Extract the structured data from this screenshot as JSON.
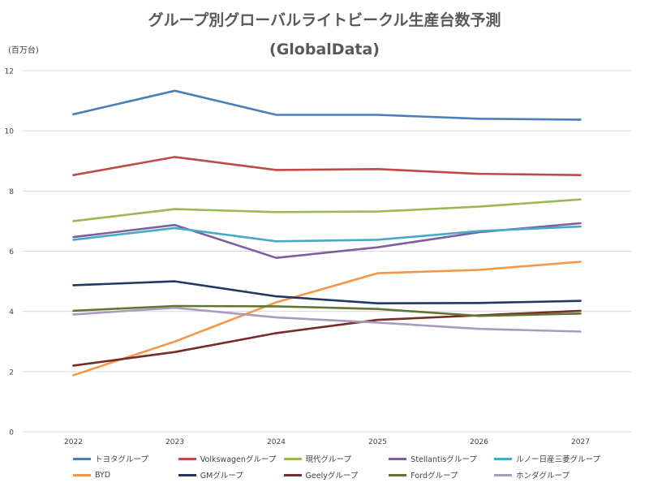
{
  "chart_data": {
    "type": "line",
    "title_line1": "グループ別グローバルライトビークル生産台数予測",
    "title_line2": "(GlobalData)",
    "unit_label": "(百万台)",
    "categories": [
      "2022",
      "2023",
      "2024",
      "2025",
      "2026",
      "2027"
    ],
    "ylim": [
      0,
      12
    ],
    "yticks": [
      "0",
      "2",
      "4",
      "6",
      "8",
      "10",
      "12"
    ],
    "grid": true,
    "legend_position": "bottom",
    "series": [
      {
        "name": "トヨタグループ",
        "color": "#4a7ebb",
        "values": [
          10.55,
          11.33,
          10.53,
          10.53,
          10.4,
          10.37
        ]
      },
      {
        "name": "Volkswagenグループ",
        "color": "#be4b48",
        "values": [
          8.53,
          9.13,
          8.7,
          8.73,
          8.57,
          8.53
        ]
      },
      {
        "name": "現代グループ",
        "color": "#98b954",
        "values": [
          7.0,
          7.4,
          7.3,
          7.32,
          7.48,
          7.72
        ]
      },
      {
        "name": "Stellantisグループ",
        "color": "#7d5fa0",
        "values": [
          6.47,
          6.87,
          5.78,
          6.13,
          6.63,
          6.93
        ]
      },
      {
        "name": "ルノー日産三菱グループ",
        "color": "#46aac5",
        "values": [
          6.38,
          6.77,
          6.33,
          6.38,
          6.67,
          6.82
        ]
      },
      {
        "name": "BYD",
        "color": "#f79646",
        "values": [
          1.88,
          3.0,
          4.3,
          5.27,
          5.38,
          5.65
        ]
      },
      {
        "name": "GMグループ",
        "color": "#1f3864",
        "values": [
          4.87,
          5.0,
          4.5,
          4.27,
          4.28,
          4.35
        ]
      },
      {
        "name": "Geelyグループ",
        "color": "#772c2a",
        "values": [
          2.2,
          2.65,
          3.28,
          3.72,
          3.87,
          4.02
        ]
      },
      {
        "name": "Fordグループ",
        "color": "#5f7530",
        "values": [
          4.02,
          4.18,
          4.17,
          4.08,
          3.85,
          3.93
        ]
      },
      {
        "name": "ホンダグループ",
        "color": "#a99bbd",
        "values": [
          3.9,
          4.12,
          3.8,
          3.63,
          3.42,
          3.33
        ]
      }
    ]
  },
  "colors": {
    "gridline": "#d9d9d9",
    "axis_text": "#404040",
    "title": "#595959"
  }
}
